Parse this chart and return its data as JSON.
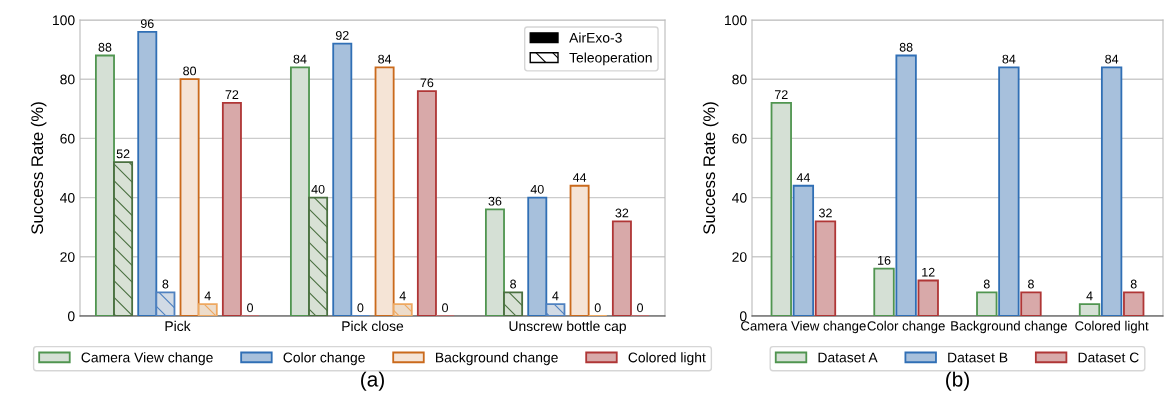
{
  "chart_data": [
    {
      "type": "bar",
      "ylabel": "Success Rate (%)",
      "categories": [
        "Pick",
        "Pick close",
        "Unscrew bottle cap"
      ],
      "ylim": [
        0,
        100
      ],
      "yticks": [
        0,
        20,
        40,
        60,
        80,
        100
      ],
      "grid": "y",
      "data_labels": true,
      "legend": "bottom",
      "annotations": [
        "AirExo-3",
        "Teleoperation",
        "(a)"
      ],
      "series": [
        {
          "name": "Camera View change",
          "color": "#d5e0d5",
          "values": [
            88,
            84,
            36
          ]
        },
        {
          "color": "#4a7040",
          "values": [
            52,
            40,
            8
          ]
        },
        {
          "name": "Color change",
          "color": "#a7c0dc",
          "values": [
            96,
            92,
            40
          ]
        },
        {
          "color": "#4f81c0",
          "values": [
            8,
            0,
            4
          ]
        },
        {
          "name": "Background change",
          "color": "#f5e4d6",
          "values": [
            80,
            84,
            44
          ]
        },
        {
          "color": "#eea860",
          "values": [
            4,
            4,
            0
          ]
        },
        {
          "name": "Colored light",
          "color": "#d8a9a9",
          "values": [
            72,
            76,
            32
          ]
        },
        {
          "color": "#b86a6a",
          "values": [
            0,
            0,
            0
          ]
        }
      ]
    },
    {
      "type": "bar",
      "ylabel": "Success Rate (%)",
      "categories": [
        "Camera View change",
        "Color change",
        "Background change",
        "Colored light"
      ],
      "ylim": [
        0,
        100
      ],
      "yticks": [
        0,
        20,
        40,
        60,
        80,
        100
      ],
      "grid": "y",
      "data_labels": true,
      "legend": "bottom",
      "annotations": [
        "(b)"
      ],
      "series": [
        {
          "name": "Dataset A",
          "color": "#d5e0d5",
          "values": [
            72,
            16,
            8,
            4
          ]
        },
        {
          "name": "Dataset B",
          "color": "#a7c0dc",
          "values": [
            44,
            88,
            84,
            84
          ]
        },
        {
          "name": "Dataset C",
          "color": "#d8a9a9",
          "values": [
            32,
            12,
            8,
            8
          ]
        }
      ]
    }
  ]
}
